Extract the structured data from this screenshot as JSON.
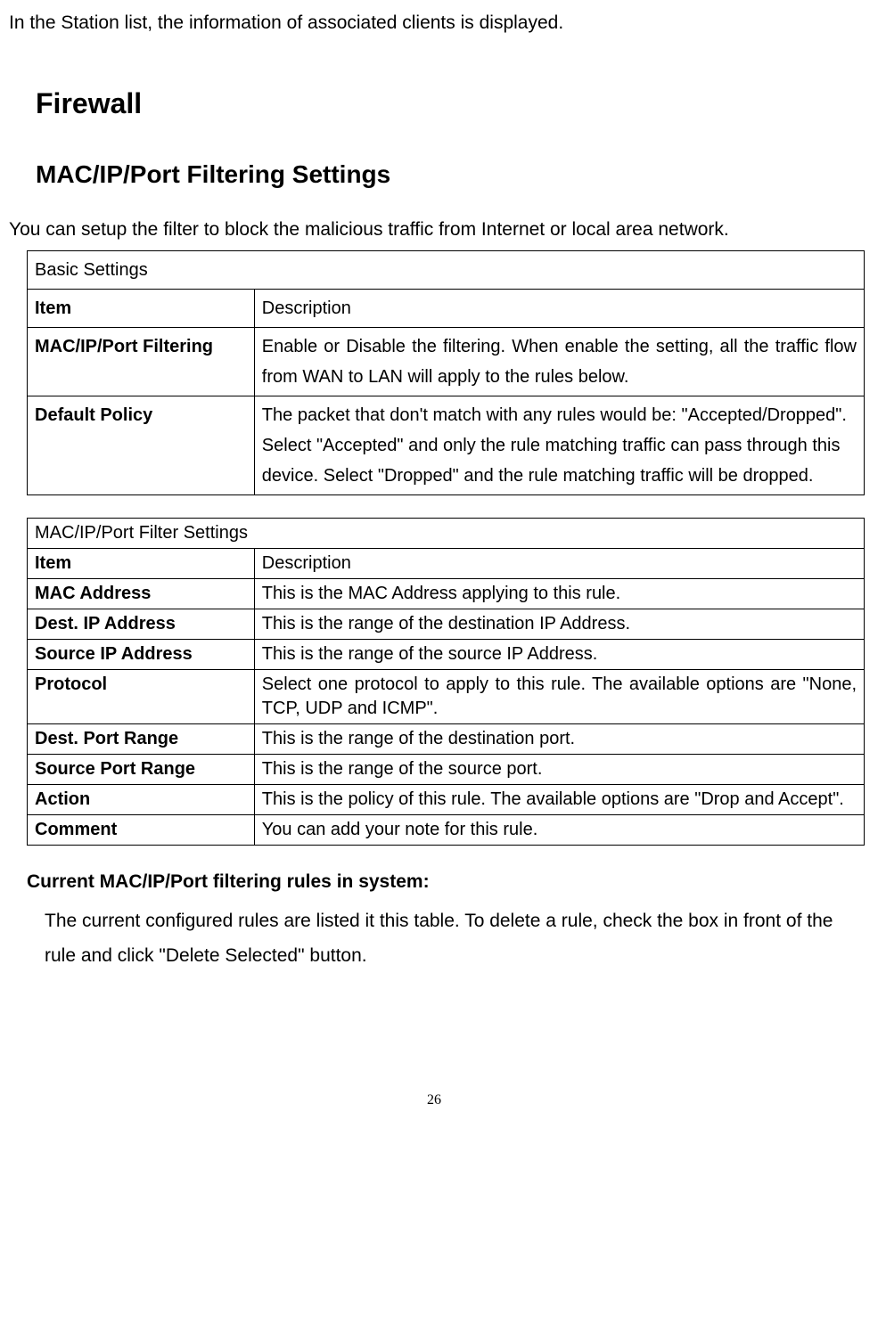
{
  "intro": "In the Station list, the information of associated clients is displayed.",
  "heading1": "Firewall",
  "heading2": "MAC/IP/Port Filtering Settings",
  "lead": "You can setup the filter to block the malicious traffic from Internet or local area network.",
  "table1": {
    "title": "Basic Settings",
    "header_item": "Item",
    "header_desc": "Description",
    "rows": [
      {
        "item": "MAC/IP/Port Filtering",
        "desc": "Enable or Disable the filtering. When enable the setting, all the traffic flow from WAN to LAN will apply to the rules below."
      },
      {
        "item": "Default Policy",
        "desc": "The packet that don't match with any rules would be: \"Accepted/Dropped\". Select \"Accepted\" and only the rule matching traffic can pass through this device. Select \"Dropped\" and the rule matching traffic will be dropped."
      }
    ]
  },
  "table2": {
    "title": "MAC/IP/Port Filter Settings",
    "header_item": "Item",
    "header_desc": "Description",
    "rows": [
      {
        "item": "MAC Address",
        "desc": "This is the MAC Address applying to this rule."
      },
      {
        "item": "Dest. IP Address",
        "desc": "This is the range of the destination IP Address."
      },
      {
        "item": "Source IP Address",
        "desc": "This is the range of the source IP Address."
      },
      {
        "item": "Protocol",
        "desc": "Select one protocol to apply to this rule. The available options are \"None, TCP, UDP and ICMP\"."
      },
      {
        "item": "Dest. Port Range",
        "desc": "This is the range of the destination port."
      },
      {
        "item": "Source Port Range",
        "desc": "This is the range of the source port."
      },
      {
        "item": "Action",
        "desc": "This is the policy of this rule. The available options are \"Drop and Accept\"."
      },
      {
        "item": "Comment",
        "desc": "You can add your note for this rule."
      }
    ]
  },
  "current_rules": {
    "title": "Current MAC/IP/Port filtering rules in system:",
    "body": "The current configured rules are listed it this table. To delete a rule, check the box in front of the rule and click \"Delete Selected\" button."
  },
  "page_number": "26"
}
